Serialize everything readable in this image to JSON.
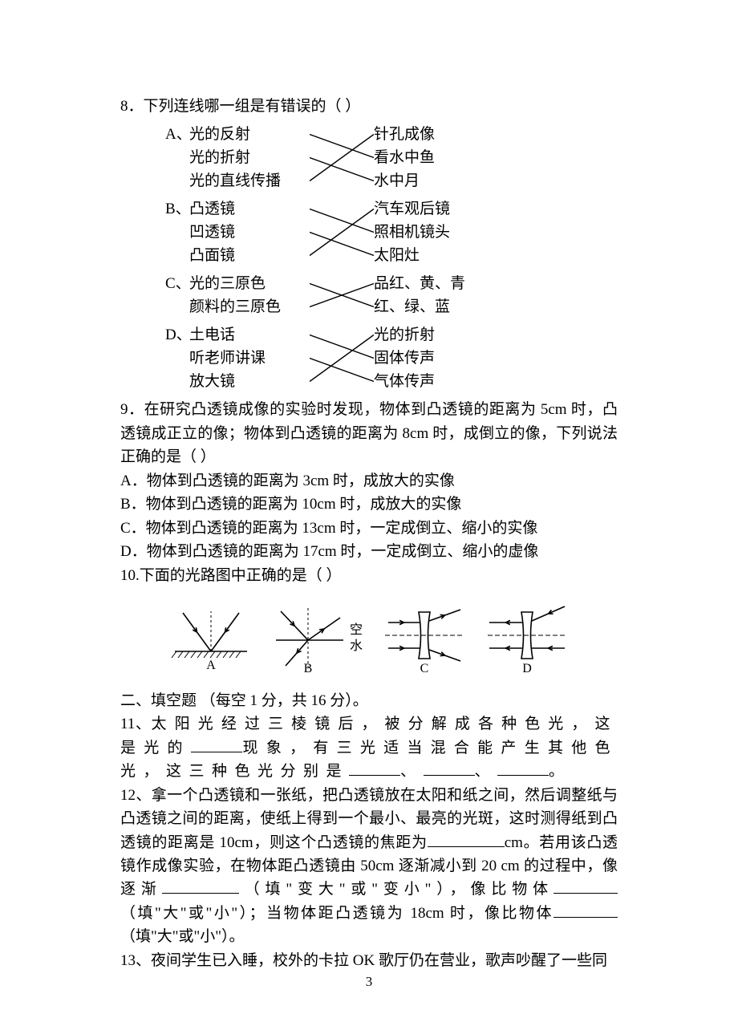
{
  "colors": {
    "text": "#000000",
    "bg": "#ffffff",
    "line": "#000000"
  },
  "q8": {
    "num": "8．",
    "stem": "下列连线哪一组是有错误的（    ）",
    "groups": [
      {
        "tag": "A、",
        "left": [
          "光的反射",
          "光的折射",
          "光的直线传播"
        ],
        "right": [
          "针孔成像",
          "看水中鱼",
          "水中月"
        ],
        "lines": [
          [
            0,
            1
          ],
          [
            1,
            2
          ],
          [
            2,
            0
          ]
        ]
      },
      {
        "tag": "B、",
        "left": [
          "凸透镜",
          "凹透镜",
          "凸面镜"
        ],
        "right": [
          "汽车观后镜",
          "照相机镜头",
          "太阳灶"
        ],
        "lines": [
          [
            0,
            1
          ],
          [
            1,
            2
          ],
          [
            2,
            0
          ]
        ]
      },
      {
        "tag": "C、",
        "left": [
          "光的三原色",
          "颜料的三原色"
        ],
        "right": [
          "品红、黄、青",
          "红、绿、蓝"
        ],
        "lines": [
          [
            0,
            1
          ],
          [
            1,
            0
          ]
        ]
      },
      {
        "tag": "D、",
        "left": [
          "土电话",
          "听老师讲课",
          "放大镜"
        ],
        "right": [
          "光的折射",
          "固体传声",
          "气体传声"
        ],
        "lines": [
          [
            0,
            1
          ],
          [
            1,
            2
          ],
          [
            2,
            0
          ]
        ]
      }
    ]
  },
  "q9": {
    "num": "9．",
    "stem": "在研究凸透镜成像的实验时发现，物体到凸透镜的距离为 5cm 时，凸透镜成正立的像；物体到凸透镜的距离为 8cm 时，成倒立的像，下列说法正确的是（    ）",
    "opts": [
      "A．物体到凸透镜的距离为 3cm 时，成放大的实像",
      "B．物体到凸透镜的距离为 10cm 时，成放大的实像",
      "C．物体到凸透镜的距离为 13cm 时，一定成倒立、缩小的实像",
      "D．物体到凸透镜的距离为 17cm 时，一定成倒立、缩小的虚像"
    ]
  },
  "q10": {
    "num": "10.",
    "stem": "下面的光路图中正确的是（          ）",
    "labels": {
      "A": "A",
      "B": "B",
      "C": "C",
      "D": "D",
      "media_up": "空",
      "media_down": "水"
    },
    "diag": {
      "stroke": "#000000",
      "stroke_w": 1.6,
      "arrow_size": 6,
      "width": 110,
      "height": 90,
      "lens_w": 14,
      "lens_h": 58
    }
  },
  "section2": "二、填空题 （每空 1 分，共 16 分）。",
  "q11": {
    "num": "11、",
    "t": "太阳光经过三棱镜后，被分解成各种色光，这是光的＿＿＿＿现象，有三光适当混合能产生其他色光，这三种色光分别是＿＿＿＿、＿＿＿＿、＿＿＿＿。"
  },
  "q12": {
    "num": "12、",
    "t": "拿一个凸透镜和一张纸，把凸透镜放在太阳和纸之间，然后调整纸与凸透镜之间的距离，使纸上得到一个最小、最亮的光斑，这时测得纸到凸透镜的距离是 10cm，则这个凸透镜的焦距为＿＿＿＿＿＿cm。若用该凸透镜作成像实验，在物体距凸透镜由 50cm 逐渐减小到 20 cm 的过程中，像逐渐＿＿＿＿＿＿（填\"变大\"或\"变小\"），像比物体＿＿＿＿＿（填\"大\"或\"小\"）；当物体距凸透镜为 18cm 时，像比物体＿＿＿＿＿（填\"大\"或\"小\"）。"
  },
  "q13": {
    "num": "13、",
    "t": "夜间学生已入睡，校外的卡拉 OK 歌厅仍在营业，歌声吵醒了一些同"
  },
  "page_number": "3"
}
